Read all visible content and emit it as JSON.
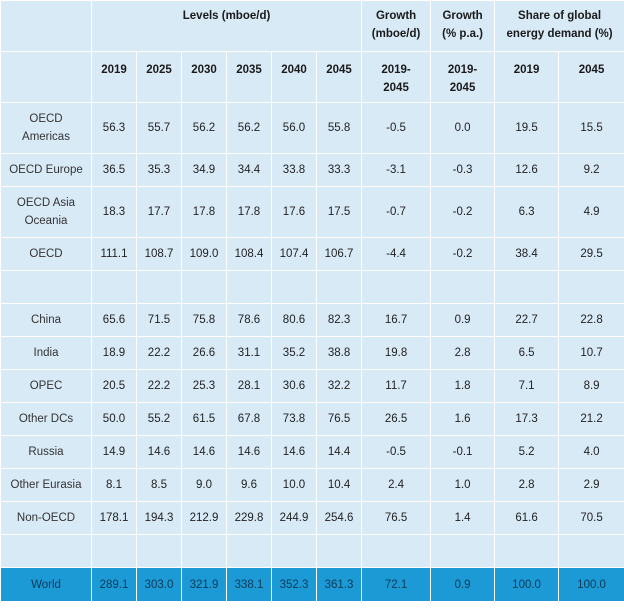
{
  "header": {
    "levels": "Levels (mboe/d)",
    "growth_abs": [
      "Growth",
      "(mboe/d)"
    ],
    "growth_pct": [
      "Growth",
      "(% p.a.)"
    ],
    "share": [
      "Share of global",
      "energy demand (%)"
    ]
  },
  "subheader": {
    "years": [
      "2019",
      "2025",
      "2030",
      "2035",
      "2040",
      "2045"
    ],
    "growth_abs": [
      "2019-",
      "2045"
    ],
    "growth_pct": [
      "2019-",
      "2045"
    ],
    "share_years": [
      "2019",
      "2045"
    ]
  },
  "rows": [
    {
      "label": [
        "OECD",
        "Americas"
      ],
      "values": [
        "56.3",
        "55.7",
        "56.2",
        "56.2",
        "56.0",
        "55.8",
        "-0.5",
        "0.0",
        "19.5",
        "15.5"
      ]
    },
    {
      "label": [
        "OECD Europe"
      ],
      "values": [
        "36.5",
        "35.3",
        "34.9",
        "34.4",
        "33.8",
        "33.3",
        "-3.1",
        "-0.3",
        "12.6",
        "9.2"
      ]
    },
    {
      "label": [
        "OECD Asia",
        "Oceania"
      ],
      "values": [
        "18.3",
        "17.7",
        "17.8",
        "17.8",
        "17.6",
        "17.5",
        "-0.7",
        "-0.2",
        "6.3",
        "4.9"
      ]
    },
    {
      "label": [
        "OECD"
      ],
      "values": [
        "111.1",
        "108.7",
        "109.0",
        "108.4",
        "107.4",
        "106.7",
        "-4.4",
        "-0.2",
        "38.4",
        "29.5"
      ]
    },
    {
      "label": [
        "China"
      ],
      "values": [
        "65.6",
        "71.5",
        "75.8",
        "78.6",
        "80.6",
        "82.3",
        "16.7",
        "0.9",
        "22.7",
        "22.8"
      ]
    },
    {
      "label": [
        "India"
      ],
      "values": [
        "18.9",
        "22.2",
        "26.6",
        "31.1",
        "35.2",
        "38.8",
        "19.8",
        "2.8",
        "6.5",
        "10.7"
      ]
    },
    {
      "label": [
        "OPEC"
      ],
      "values": [
        "20.5",
        "22.2",
        "25.3",
        "28.1",
        "30.6",
        "32.2",
        "11.7",
        "1.8",
        "7.1",
        "8.9"
      ]
    },
    {
      "label": [
        "Other DCs"
      ],
      "values": [
        "50.0",
        "55.2",
        "61.5",
        "67.8",
        "73.8",
        "76.5",
        "26.5",
        "1.6",
        "17.3",
        "21.2"
      ]
    },
    {
      "label": [
        "Russia"
      ],
      "values": [
        "14.9",
        "14.6",
        "14.6",
        "14.6",
        "14.6",
        "14.4",
        "-0.5",
        "-0.1",
        "5.2",
        "4.0"
      ]
    },
    {
      "label": [
        "Other Eurasia"
      ],
      "values": [
        "8.1",
        "8.5",
        "9.0",
        "9.6",
        "10.0",
        "10.4",
        "2.4",
        "1.0",
        "2.8",
        "2.9"
      ]
    },
    {
      "label": [
        "Non-OECD"
      ],
      "values": [
        "178.1",
        "194.3",
        "212.9",
        "229.8",
        "244.9",
        "254.6",
        "76.5",
        "1.4",
        "61.6",
        "70.5"
      ]
    }
  ],
  "world": {
    "label": "World",
    "values": [
      "289.1",
      "303.0",
      "321.9",
      "338.1",
      "352.3",
      "361.3",
      "72.1",
      "0.9",
      "100.0",
      "100.0"
    ]
  }
}
